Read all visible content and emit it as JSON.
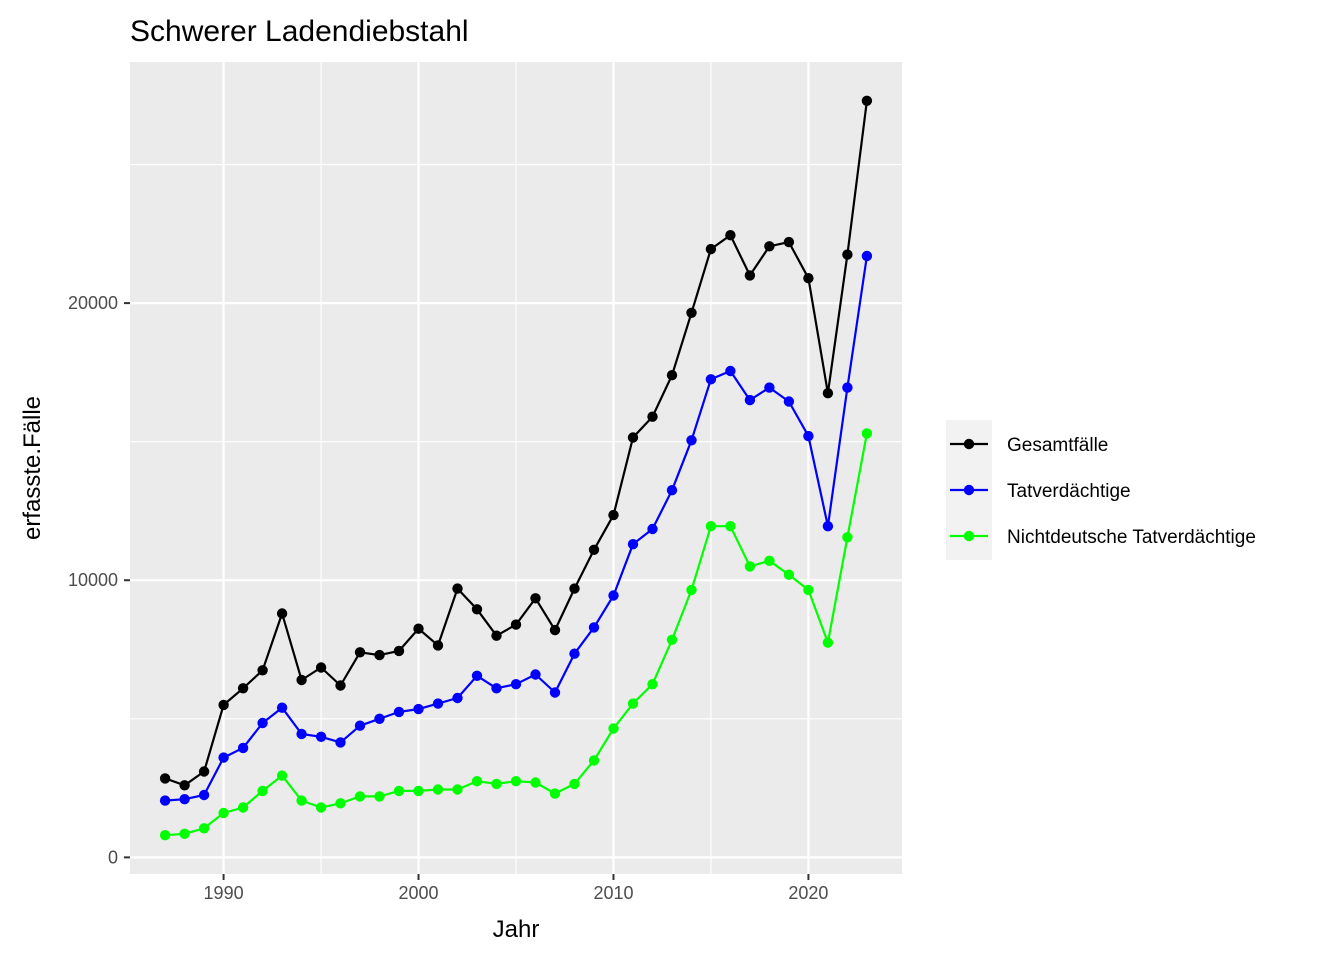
{
  "chart_data": {
    "type": "line",
    "title": "Schwerer Ladendiebstahl",
    "xlabel": "Jahr",
    "ylabel": "erfasste.Fälle",
    "xlim": [
      1985.2,
      2024.8
    ],
    "ylim": [
      -600,
      28700
    ],
    "x_ticks": [
      1990,
      2000,
      2010,
      2020
    ],
    "y_ticks": [
      0,
      10000,
      20000
    ],
    "x_tick_labels": [
      "1990",
      "2000",
      "2010",
      "2020"
    ],
    "y_tick_labels": [
      "0",
      "10000",
      "20000"
    ],
    "grid": true,
    "legend_position": "right",
    "x": [
      1987,
      1988,
      1989,
      1990,
      1991,
      1992,
      1993,
      1994,
      1995,
      1996,
      1997,
      1998,
      1999,
      2000,
      2001,
      2002,
      2003,
      2004,
      2005,
      2006,
      2007,
      2008,
      2009,
      2010,
      2011,
      2012,
      2013,
      2014,
      2015,
      2016,
      2017,
      2018,
      2019,
      2020,
      2021,
      2022,
      2023
    ],
    "series": [
      {
        "name": "Gesamtfälle",
        "color": "#000000",
        "values": [
          2850,
          2600,
          3100,
          5500,
          6100,
          6750,
          8800,
          6400,
          6850,
          6200,
          7400,
          7300,
          7450,
          8250,
          7650,
          9700,
          8950,
          8000,
          8400,
          9350,
          8200,
          9700,
          11100,
          12350,
          15150,
          15900,
          17400,
          19650,
          21950,
          22450,
          21000,
          22050,
          22200,
          20900,
          16750,
          21750,
          27300
        ]
      },
      {
        "name": "Tatverdächtige",
        "color": "#0000ff",
        "values": [
          2050,
          2100,
          2250,
          3600,
          3950,
          4850,
          5400,
          4450,
          4350,
          4150,
          4750,
          5000,
          5250,
          5350,
          5550,
          5750,
          6550,
          6100,
          6250,
          6600,
          5950,
          7350,
          8300,
          9450,
          11300,
          11850,
          13250,
          15050,
          17250,
          17550,
          16500,
          16950,
          16450,
          15200,
          11950,
          16950,
          21700
        ]
      },
      {
        "name": "Nichtdeutsche Tatverdächtige",
        "color": "#00ff00",
        "values": [
          800,
          850,
          1050,
          1600,
          1800,
          2400,
          2950,
          2050,
          1800,
          1950,
          2200,
          2200,
          2400,
          2400,
          2450,
          2450,
          2750,
          2650,
          2750,
          2700,
          2300,
          2650,
          3500,
          4650,
          5550,
          6250,
          7850,
          9650,
          11950,
          11950,
          10500,
          10700,
          10200,
          9650,
          7750,
          11550,
          15300
        ]
      }
    ]
  }
}
